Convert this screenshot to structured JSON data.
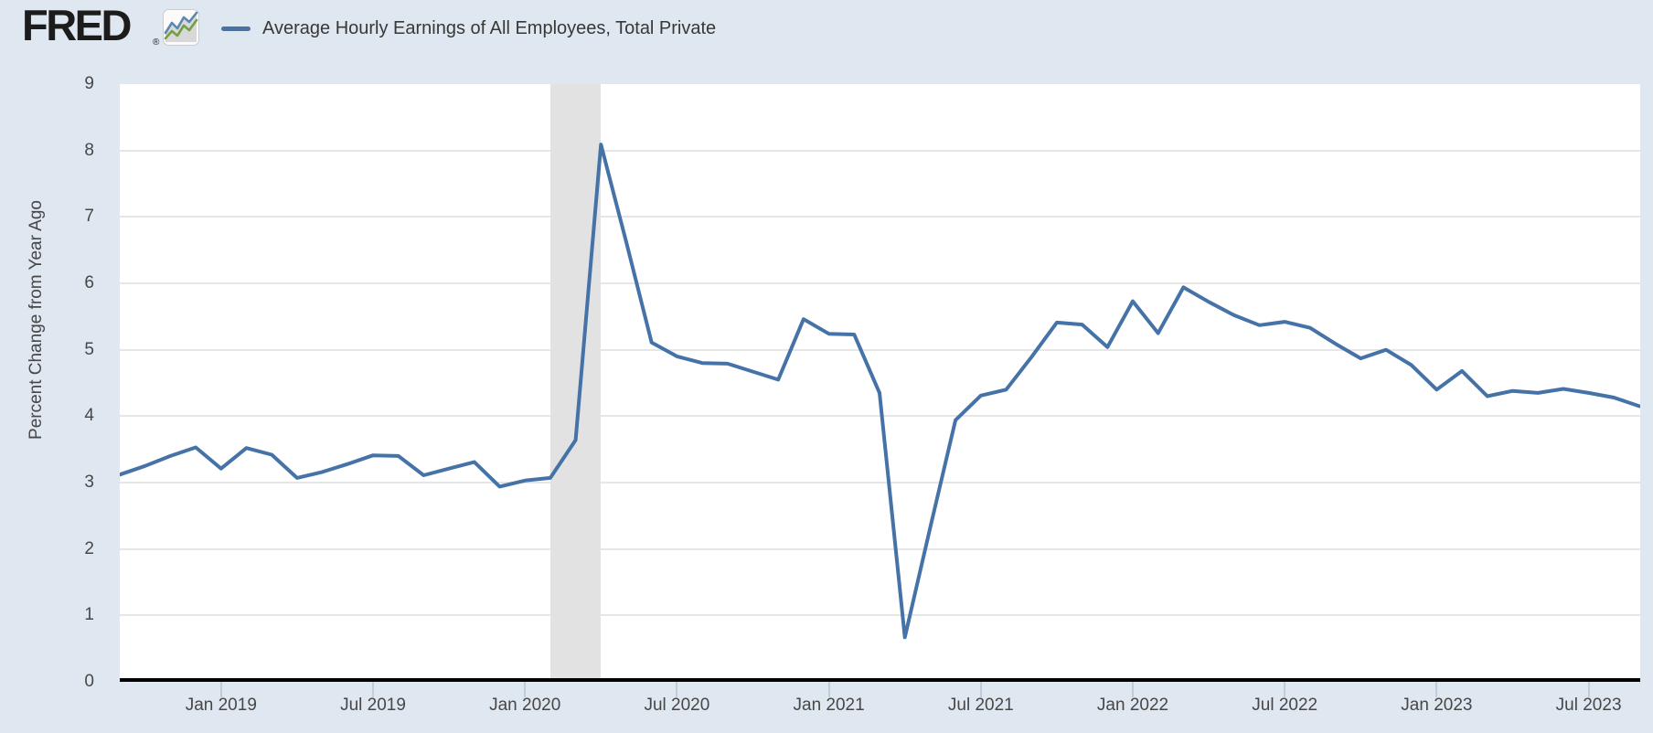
{
  "header": {
    "brand": "FRED",
    "registered": "®",
    "legend": {
      "swatch_color": "#4572a7",
      "label": "Average Hourly Earnings of All Employees, Total Private"
    }
  },
  "colors": {
    "page_bg": "#dfe7f0",
    "plot_bg": "#ffffff",
    "grid": "#e6e6e6",
    "line": "#4572a7",
    "recession_band": "#e2e2e2",
    "zero_axis": "#000000",
    "tick_mark": "#bfcede",
    "axis_text": "#474747",
    "icon_blue": "#5b87b0",
    "icon_green": "#73a043"
  },
  "y_axis": {
    "title": "Percent Change from Year Ago",
    "ticks": [
      0,
      1,
      2,
      3,
      4,
      5,
      6,
      7,
      8,
      9
    ],
    "min": 0,
    "max": 9
  },
  "x_axis": {
    "ticks": [
      {
        "label": "Jan 2019",
        "month": "2019-01"
      },
      {
        "label": "Jul 2019",
        "month": "2019-07"
      },
      {
        "label": "Jan 2020",
        "month": "2020-01"
      },
      {
        "label": "Jul 2020",
        "month": "2020-07"
      },
      {
        "label": "Jan 2021",
        "month": "2021-01"
      },
      {
        "label": "Jul 2021",
        "month": "2021-07"
      },
      {
        "label": "Jan 2022",
        "month": "2022-01"
      },
      {
        "label": "Jul 2022",
        "month": "2022-07"
      },
      {
        "label": "Jan 2023",
        "month": "2023-01"
      },
      {
        "label": "Jul 2023",
        "month": "2023-07"
      }
    ]
  },
  "chart_data": {
    "type": "line",
    "title": "Average Hourly Earnings of All Employees, Total Private",
    "xlabel": "",
    "ylabel": "Percent Change from Year Ago",
    "ylim": [
      0,
      9
    ],
    "grid": true,
    "legend_position": "top-left",
    "recession_band": {
      "from": "2020-02",
      "to": "2020-04"
    },
    "series": [
      {
        "name": "Average Hourly Earnings of All Employees, Total Private",
        "color": "#4572a7",
        "x": [
          "2018-09",
          "2018-10",
          "2018-11",
          "2018-12",
          "2019-01",
          "2019-02",
          "2019-03",
          "2019-04",
          "2019-05",
          "2019-06",
          "2019-07",
          "2019-08",
          "2019-09",
          "2019-10",
          "2019-11",
          "2019-12",
          "2020-01",
          "2020-02",
          "2020-03",
          "2020-04",
          "2020-05",
          "2020-06",
          "2020-07",
          "2020-08",
          "2020-09",
          "2020-10",
          "2020-11",
          "2020-12",
          "2021-01",
          "2021-02",
          "2021-03",
          "2021-04",
          "2021-05",
          "2021-06",
          "2021-07",
          "2021-08",
          "2021-09",
          "2021-10",
          "2021-11",
          "2021-12",
          "2022-01",
          "2022-02",
          "2022-03",
          "2022-04",
          "2022-05",
          "2022-06",
          "2022-07",
          "2022-08",
          "2022-09",
          "2022-10",
          "2022-11",
          "2022-12",
          "2023-01",
          "2023-02",
          "2023-03",
          "2023-04",
          "2023-05",
          "2023-06",
          "2023-07",
          "2023-08",
          "2023-09"
        ],
        "values": [
          3.12,
          3.25,
          3.4,
          3.53,
          3.21,
          3.52,
          3.42,
          3.07,
          3.16,
          3.28,
          3.41,
          3.4,
          3.11,
          3.21,
          3.31,
          2.94,
          3.03,
          3.07,
          3.64,
          8.09,
          6.62,
          5.11,
          4.9,
          4.8,
          4.79,
          4.67,
          4.55,
          5.46,
          5.24,
          5.23,
          4.35,
          0.67,
          2.32,
          3.94,
          4.31,
          4.4,
          4.89,
          5.41,
          5.38,
          5.04,
          5.73,
          5.25,
          5.94,
          5.72,
          5.52,
          5.37,
          5.42,
          5.33,
          5.09,
          4.87,
          5.0,
          4.77,
          4.4,
          4.68,
          4.3,
          4.38,
          4.35,
          4.41,
          4.35,
          4.28,
          4.15
        ]
      }
    ]
  }
}
